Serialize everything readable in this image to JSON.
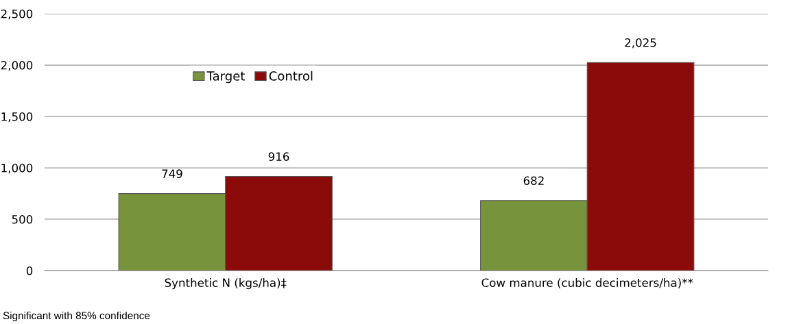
{
  "chart_data": {
    "type": "bar",
    "categories": [
      "Synthetic N (kgs/ha)‡",
      "Cow manure (cubic decimeters/ha)**"
    ],
    "series": [
      {
        "name": "Target",
        "color": "#77933c",
        "values": [
          749,
          682
        ],
        "value_labels": [
          "749",
          "682"
        ]
      },
      {
        "name": "Control",
        "color": "#8b0a0a",
        "values": [
          916,
          2025
        ],
        "value_labels": [
          "916",
          "2,025"
        ]
      }
    ],
    "ylim": [
      0,
      2500
    ],
    "yticks": [
      {
        "value": 0,
        "label": "0"
      },
      {
        "value": 500,
        "label": "500"
      },
      {
        "value": 1000,
        "label": "1,000"
      },
      {
        "value": 1500,
        "label": "1,500"
      },
      {
        "value": 2000,
        "label": "2,000"
      },
      {
        "value": 2500,
        "label": "2,500"
      }
    ],
    "grid": "y",
    "legend": "top left",
    "annotations": [
      "Significant with 85% confidence"
    ]
  }
}
